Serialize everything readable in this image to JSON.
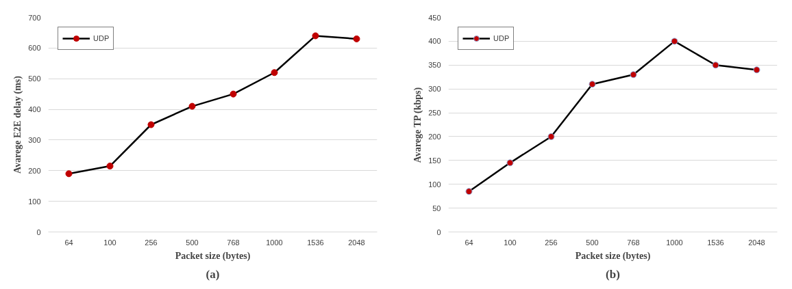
{
  "chart_data": [
    {
      "type": "line",
      "categories": [
        "64",
        "100",
        "256",
        "500",
        "768",
        "1000",
        "1536",
        "2048"
      ],
      "series": [
        {
          "name": "UDP",
          "color": "#000000",
          "values": [
            190,
            215,
            350,
            410,
            450,
            520,
            640,
            630
          ]
        }
      ],
      "xlabel": "Packet size (bytes)",
      "ylabel": "Avarege E2E delay (ms)",
      "ylim": [
        0,
        700
      ],
      "yticks": [
        0,
        100,
        200,
        300,
        400,
        500,
        600,
        700
      ],
      "grid": "y",
      "legend": "top left",
      "marker": "circle",
      "line_style": "solid",
      "annotations": [
        "(a)"
      ]
    },
    {
      "type": "line",
      "categories": [
        "64",
        "100",
        "256",
        "500",
        "768",
        "1000",
        "1536",
        "2048"
      ],
      "series": [
        {
          "name": "UDP",
          "color": "#000000",
          "values": [
            85,
            145,
            200,
            310,
            330,
            400,
            350,
            340
          ]
        }
      ],
      "xlabel": "Packet size (bytes)",
      "ylabel": "Avarege TP (kbps)",
      "ylim": [
        0,
        450
      ],
      "yticks": [
        0,
        50,
        100,
        150,
        200,
        250,
        300,
        350,
        400,
        450
      ],
      "grid": "y",
      "legend": "top left",
      "marker": "circle",
      "line_style": "solid",
      "annotations": [
        "(b)"
      ]
    }
  ]
}
